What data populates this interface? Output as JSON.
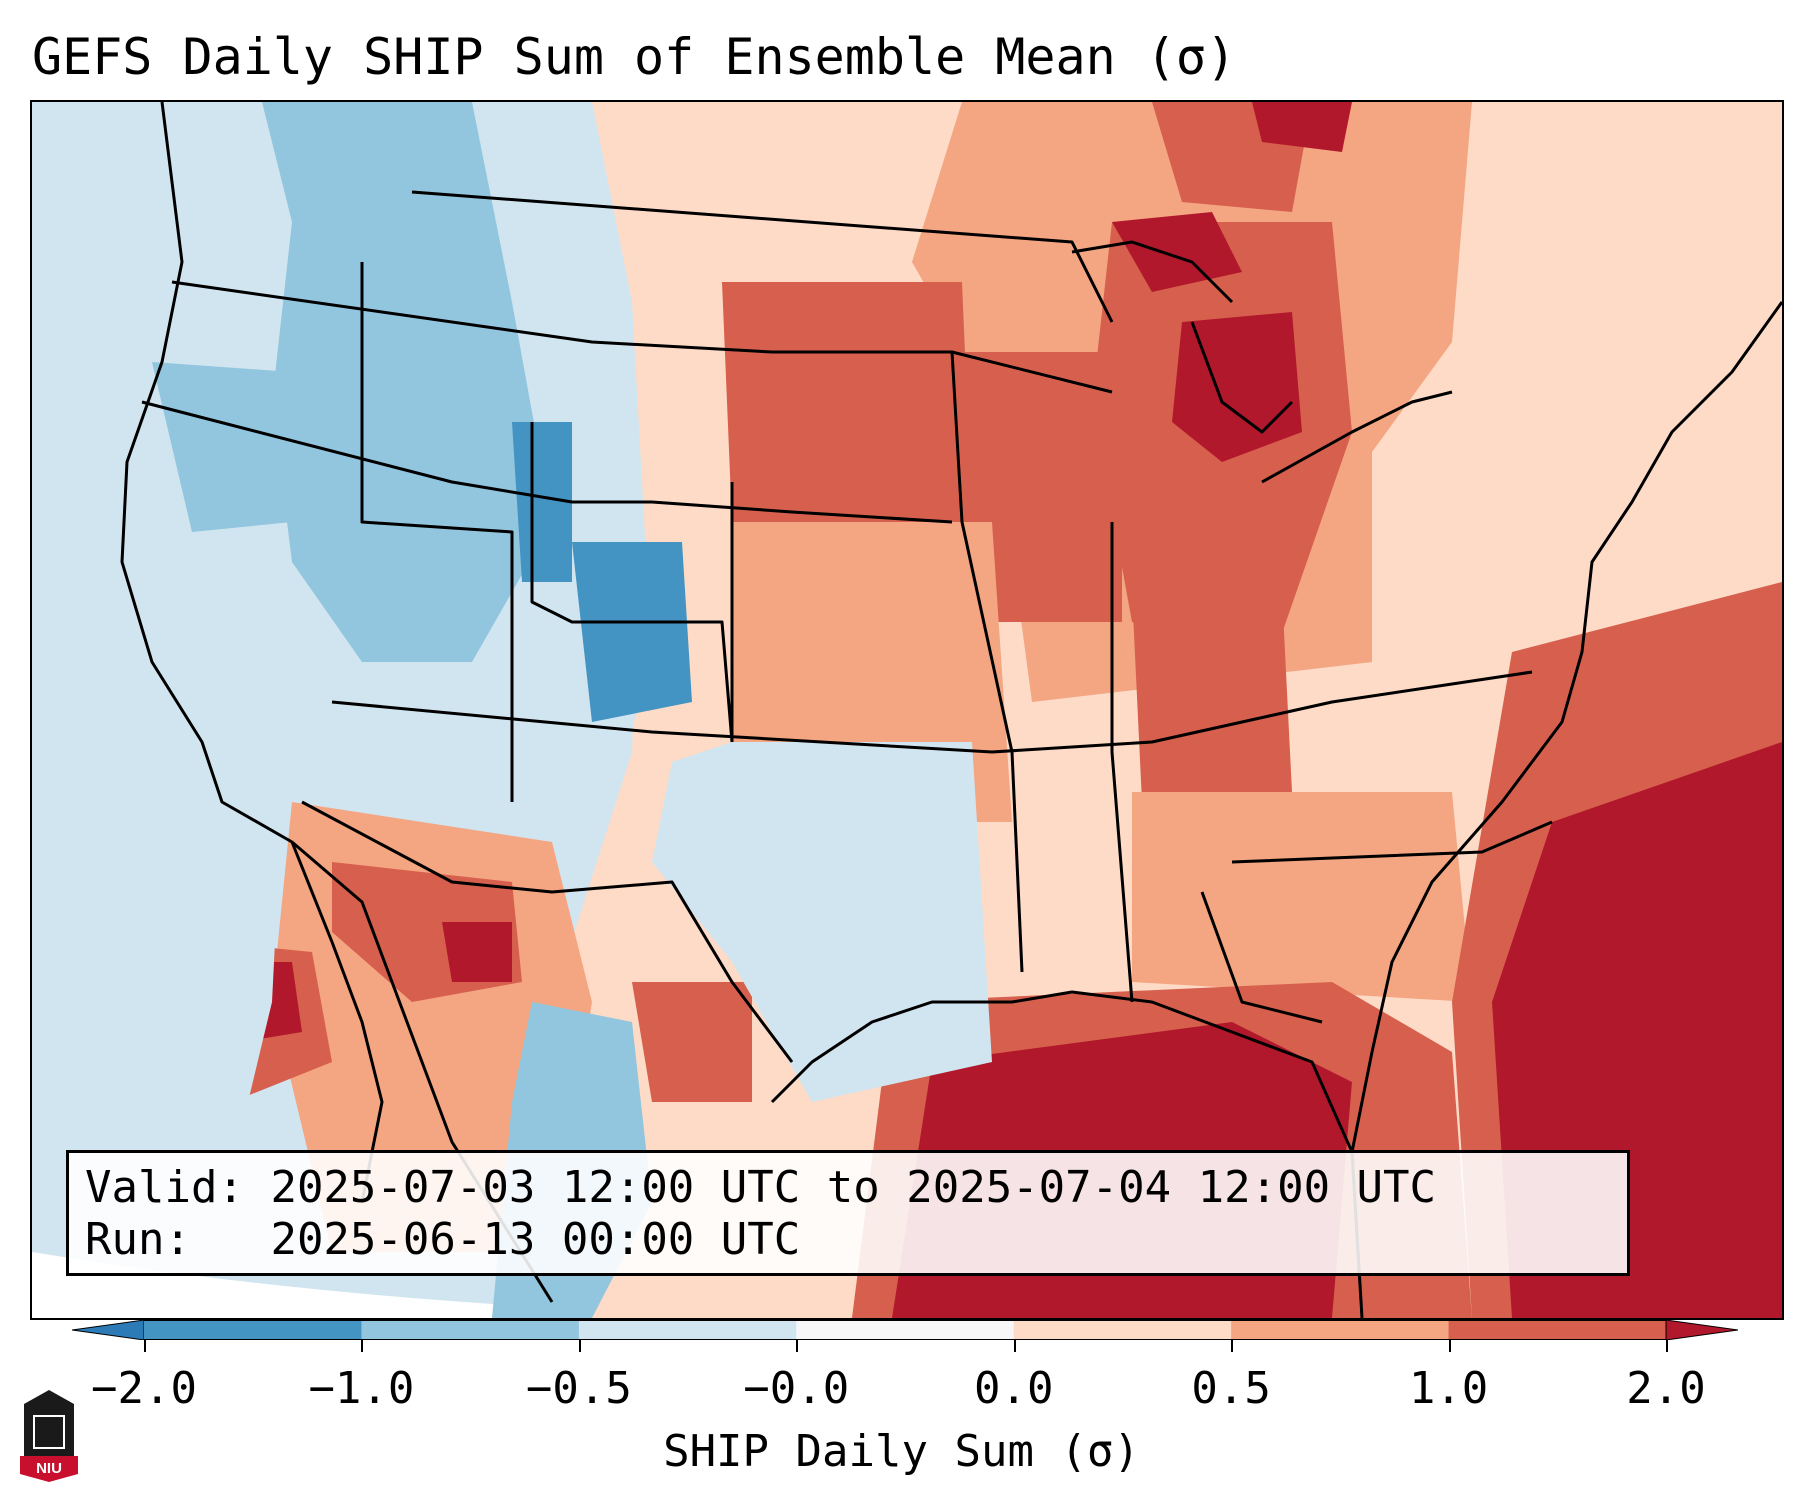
{
  "title": "GEFS Daily SHIP Sum of Ensemble Mean (σ)",
  "info": {
    "valid_label": "Valid:",
    "valid_value": "2025-07-03 12:00 UTC to 2025-07-04 12:00 UTC",
    "run_label": "Run:",
    "run_value": "2025-06-13 00:00 UTC"
  },
  "colorbar": {
    "label": "SHIP Daily Sum (σ)",
    "ticks": [
      "−2.0",
      "−1.0",
      "−0.5",
      "−0.0",
      "0.0",
      "0.5",
      "1.0",
      "2.0"
    ],
    "bins": [
      {
        "range": "< -2.0",
        "color": "#2c7bb6"
      },
      {
        "range": "-2.0 to -1.0",
        "color": "#4393c3"
      },
      {
        "range": "-1.0 to -0.5",
        "color": "#92c5de"
      },
      {
        "range": "-0.5 to -0.0",
        "color": "#d1e5f0"
      },
      {
        "range": "-0.0 to 0.0",
        "color": "#f7f7f7"
      },
      {
        "range": "0.0 to 0.5",
        "color": "#fddbc7"
      },
      {
        "range": "0.5 to 1.0",
        "color": "#f4a582"
      },
      {
        "range": "1.0 to 2.0",
        "color": "#d6604d"
      },
      {
        "range": "> 2.0",
        "color": "#b2182b"
      }
    ]
  },
  "logo": {
    "text": "NIU"
  }
}
